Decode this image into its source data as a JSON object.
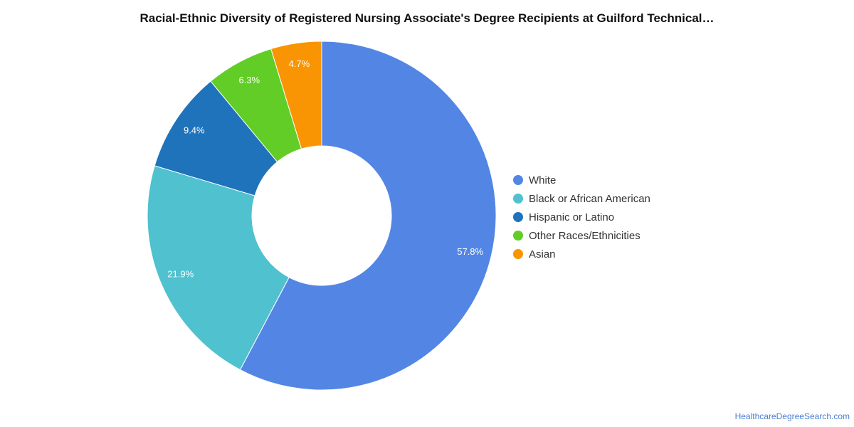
{
  "chart_data": {
    "type": "pie",
    "title": "Racial-Ethnic Diversity of Registered Nursing Associate's Degree Recipients at Guilford Technical…",
    "donut": true,
    "legend_position": "right",
    "slices": [
      {
        "label": "White",
        "value": 57.8,
        "value_label": "57.8%",
        "color": "#5386e4"
      },
      {
        "label": "Black or African American",
        "value": 21.9,
        "value_label": "21.9%",
        "color": "#4fc1cf"
      },
      {
        "label": "Hispanic or Latino",
        "value": 9.4,
        "value_label": "9.4%",
        "color": "#1f73bb"
      },
      {
        "label": "Other Races/Ethnicities",
        "value": 6.3,
        "value_label": "6.3%",
        "color": "#62cd27"
      },
      {
        "label": "Asian",
        "value": 4.7,
        "value_label": "4.7%",
        "color": "#f99503"
      }
    ]
  },
  "footer": {
    "source": "HealthcareDegreeSearch.com"
  }
}
